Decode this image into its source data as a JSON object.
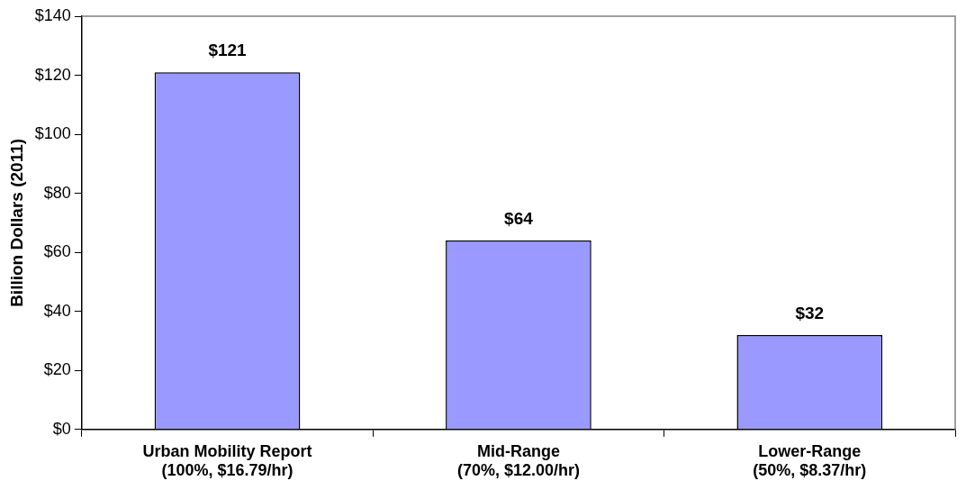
{
  "chart_data": {
    "type": "bar",
    "ylabel": "Billion Dollars (2011)",
    "categories": [
      "Urban Mobility Report\n(100%, $16.79/hr)",
      "Mid-Range\n(70%, $12.00/hr)",
      "Lower-Range\n(50%, $8.37/hr)"
    ],
    "values": [
      121,
      64,
      32
    ],
    "color": "#9999ff",
    "value_labels": [
      "$121",
      "$64",
      "$32"
    ],
    "ylim": [
      0,
      140
    ],
    "yticks": [
      {
        "value": 0,
        "label": "$0"
      },
      {
        "value": 20,
        "label": "$20"
      },
      {
        "value": 40,
        "label": "$40"
      },
      {
        "value": 60,
        "label": "$60"
      },
      {
        "value": 80,
        "label": "$80"
      },
      {
        "value": 100,
        "label": "$100"
      },
      {
        "value": 120,
        "label": "$120"
      },
      {
        "value": 140,
        "label": "$140"
      }
    ],
    "grid": false,
    "legend": false
  }
}
